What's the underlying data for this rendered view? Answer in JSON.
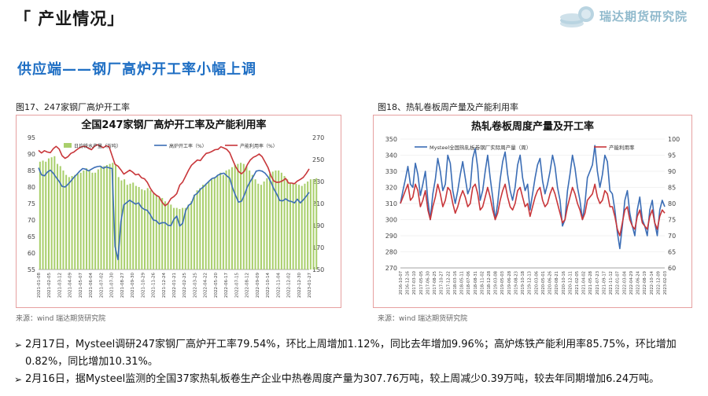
{
  "header": {
    "section_title": "「 产业情况」",
    "logo_text": "瑞达期货研究院"
  },
  "headline": "供应端——钢厂高炉开工率小幅上调",
  "figures": [
    {
      "caption": "图17、247家钢厂高炉开工率",
      "source": "来源：wind    瑞达期货研究院"
    },
    {
      "caption": "图18、热轧卷板周产量及产能利用率",
      "source": "来源：wind    瑞达期货研究院"
    }
  ],
  "bullets": [
    "2月17日，Mysteel调研247家钢厂高炉开工率79.54%，环比上周增加1.12%，同比去年增加9.96%；高炉炼铁产能利用率85.75%，环比增加0.82%，同比增加10.31%。",
    "2月16日，据Mysteel监测的全国37家热轧板卷生产企业中热卷周度产量为307.76万吨，较上周减少0.39万吨，较去年同期增加6.24万吨。"
  ],
  "bullet_marker": "➢",
  "chart_data": [
    {
      "type": "bar+line",
      "title": "全国247家钢厂高炉开工率及产能利用率",
      "legend": [
        "日均铁水产量（万吨）",
        "高炉开工率（%）",
        "产能利用率（%）"
      ],
      "legend_position": "top",
      "colors": {
        "bar": "#a9cf6c",
        "line1": "#3b6db5",
        "line2": "#c8363a"
      },
      "y_left": {
        "min": 55,
        "max": 95,
        "ticks": [
          55,
          60,
          65,
          70,
          75,
          80,
          85,
          90,
          95
        ]
      },
      "y_right": {
        "min": 150,
        "max": 270,
        "ticks": [
          150,
          170,
          190,
          210,
          230,
          250,
          270
        ]
      },
      "x_ticks": [
        "2021-01-08",
        "2021-02-05",
        "2021-03-12",
        "2021-04-09",
        "2021-05-07",
        "2021-06-04",
        "2021-07-02",
        "2021-07-30",
        "2021-08-27",
        "2021-09-30",
        "2021-10-29",
        "2021-11-26",
        "2021-12-24",
        "2022-01-21",
        "2022-02-25",
        "2022-03-25",
        "2022-04-22",
        "2022-05-20",
        "2022-06-17",
        "2022-07-15",
        "2022-08-12",
        "2022-09-09",
        "2022-10-14",
        "2022-11-04",
        "2022-12-02",
        "2022-12-30",
        "2023-01-27"
      ],
      "bars": [
        248,
        249,
        248,
        251,
        252,
        253,
        246,
        244,
        240,
        236,
        234,
        235,
        236,
        237,
        238,
        240,
        242,
        240,
        238,
        238,
        241,
        244,
        244,
        245,
        246,
        247,
        245,
        234,
        231,
        232,
        227,
        228,
        229,
        226,
        225,
        223,
        222,
        224,
        222,
        219,
        217,
        216,
        215,
        212,
        210,
        209,
        206,
        206,
        205,
        206,
        206,
        209,
        212,
        218,
        222,
        224,
        227,
        228,
        230,
        232,
        234,
        236,
        238,
        236,
        240,
        241,
        243,
        245,
        246,
        247,
        246,
        244,
        240,
        236,
        232,
        228,
        227,
        230,
        233,
        237,
        239,
        240,
        240,
        238,
        235,
        232,
        229,
        228,
        228,
        227,
        226,
        228,
        230,
        232,
        232,
        233
      ],
      "line1": [
        85.8,
        83.7,
        83.4,
        84.5,
        85.1,
        84.2,
        82.9,
        81.7,
        80.2,
        80.0,
        80.8,
        81.8,
        82.9,
        83.8,
        84.8,
        85.6,
        85.4,
        84.9,
        85.4,
        85.9,
        86.2,
        86.3,
        85.7,
        86.1,
        85.8,
        85.6,
        62.0,
        58.0,
        69.5,
        74.6,
        75.3,
        76.0,
        75.4,
        74.8,
        75.2,
        73.8,
        73.2,
        72.9,
        71.6,
        70.0,
        69.8,
        68.8,
        69.2,
        69.2,
        68.4,
        68.3,
        70.2,
        71.2,
        68.2,
        69.0,
        72.8,
        74.4,
        75.1,
        77.5,
        78.1,
        79.3,
        80.0,
        80.9,
        81.8,
        82.6,
        82.8,
        83.6,
        84.0,
        84.2,
        83.4,
        82.7,
        79.6,
        77.4,
        75.4,
        75.7,
        77.6,
        80.1,
        81.7,
        83.2,
        84.8,
        85.0,
        84.8,
        84.2,
        83.1,
        81.5,
        79.4,
        77.8,
        75.9,
        75.8,
        76.4,
        75.8,
        75.6,
        75.2,
        76.3,
        75.2,
        76.1,
        77.2,
        78.4
      ],
      "line2": [
        91.1,
        90.3,
        91.0,
        90.6,
        90.4,
        91.6,
        92.3,
        91.5,
        89.5,
        88.7,
        89.2,
        90.2,
        90.6,
        91.3,
        91.9,
        92.3,
        92.3,
        91.7,
        91.3,
        92.3,
        92.8,
        92.4,
        91.9,
        92.5,
        92.2,
        89.5,
        86.9,
        86.3,
        85.2,
        83.9,
        84.5,
        85.1,
        84.5,
        83.7,
        83.9,
        82.8,
        82.5,
        81.4,
        79.6,
        78.3,
        77.5,
        77.0,
        75.4,
        74.3,
        75.0,
        76.5,
        77.1,
        78.0,
        80.6,
        81.5,
        83.3,
        85.1,
        86.6,
        87.4,
        88.2,
        88.0,
        89.2,
        90.2,
        90.4,
        90.8,
        91.3,
        91.4,
        92.2,
        91.8,
        91.4,
        90.4,
        88.2,
        86.2,
        84.7,
        84.0,
        84.8,
        86.8,
        88.2,
        89.0,
        89.4,
        90.0,
        89.2,
        87.6,
        85.9,
        83.4,
        81.8,
        81.4,
        81.5,
        81.9,
        82.6,
        81.2,
        81.2,
        81.0,
        81.8,
        82.3,
        82.9,
        84.1,
        85.5
      ]
    },
    {
      "type": "line",
      "title": "热轧卷板周度产量及开工率",
      "legend": [
        "Mysteel全国热轧板卷钢厂实际周产量（周）",
        "产能利用率"
      ],
      "legend_position": "top",
      "colors": {
        "line1": "#3b6db5",
        "line2": "#c8363a"
      },
      "y_left": {
        "min": 270,
        "max": 350,
        "ticks": [
          270,
          280,
          290,
          300,
          310,
          320,
          330,
          340,
          350
        ]
      },
      "y_right": {
        "min": 60,
        "max": 100,
        "ticks": [
          60,
          65,
          70,
          75,
          80,
          85,
          90,
          95,
          100
        ]
      },
      "x_ticks": [
        "2016-10-07",
        "2016-12-16",
        "2017-03-10",
        "2017-05-05",
        "2017-06-30",
        "2017-08-25",
        "2017-10-27",
        "2017-12-22",
        "2018-03-16",
        "2018-05-11",
        "2018-07-06",
        "2018-08-31",
        "2018-11-02",
        "2018-12-28",
        "2019-03-08",
        "2019-05-03",
        "2019-06-28",
        "2019-08-23",
        "2019-10-18",
        "2019-12-13",
        "2020-03-06",
        "2020-05-01",
        "2020-06-26",
        "2020-08-21",
        "2020-10-16",
        "2020-12-11",
        "2021-02-05",
        "2021-04-02",
        "2021-05-28",
        "2021-07-23",
        "2021-09-17",
        "2021-11-12",
        "2022-01-07",
        "2022-03-04",
        "2022-04-29",
        "2022-06-24",
        "2022-08-19",
        "2022-10-14",
        "2022-12-09",
        "2023-02-03"
      ],
      "line1": [
        310,
        318,
        325,
        333,
        322,
        320,
        335,
        328,
        315,
        322,
        330,
        312,
        300,
        316,
        325,
        338,
        330,
        318,
        322,
        340,
        335,
        318,
        310,
        318,
        328,
        336,
        326,
        316,
        320,
        338,
        344,
        332,
        312,
        318,
        330,
        340,
        326,
        314,
        300,
        310,
        325,
        336,
        342,
        328,
        318,
        312,
        320,
        334,
        340,
        326,
        318,
        322,
        306,
        316,
        326,
        334,
        338,
        324,
        316,
        322,
        330,
        340,
        333,
        320,
        312,
        296,
        300,
        318,
        328,
        340,
        332,
        320,
        312,
        300,
        310,
        326,
        330,
        334,
        346,
        330,
        320,
        328,
        340,
        336,
        318,
        316,
        306,
        292,
        282,
        296,
        312,
        318,
        304,
        296,
        290,
        306,
        314,
        300,
        296,
        290,
        306,
        312,
        298,
        290,
        306,
        312,
        308
      ],
      "line2": [
        80,
        82,
        84,
        86,
        81,
        82,
        86,
        84,
        79,
        81,
        84,
        78,
        75,
        79,
        82,
        86,
        83,
        79,
        81,
        85,
        84,
        80,
        77,
        79,
        82,
        84,
        82,
        79,
        80,
        85,
        86,
        83,
        78,
        79,
        82,
        85,
        82,
        78,
        75,
        77,
        81,
        84,
        86,
        82,
        79,
        78,
        80,
        84,
        85,
        82,
        79,
        80,
        76,
        79,
        82,
        84,
        85,
        81,
        79,
        80,
        83,
        85,
        83,
        80,
        77,
        74,
        75,
        79,
        82,
        85,
        83,
        80,
        78,
        75,
        77,
        81,
        82,
        83,
        86,
        82,
        80,
        81,
        84,
        83,
        79,
        79,
        76,
        72,
        70,
        74,
        78,
        79,
        75,
        73,
        72,
        76,
        78,
        74,
        73,
        72,
        76,
        78,
        74,
        72,
        76,
        78,
        77
      ]
    }
  ]
}
